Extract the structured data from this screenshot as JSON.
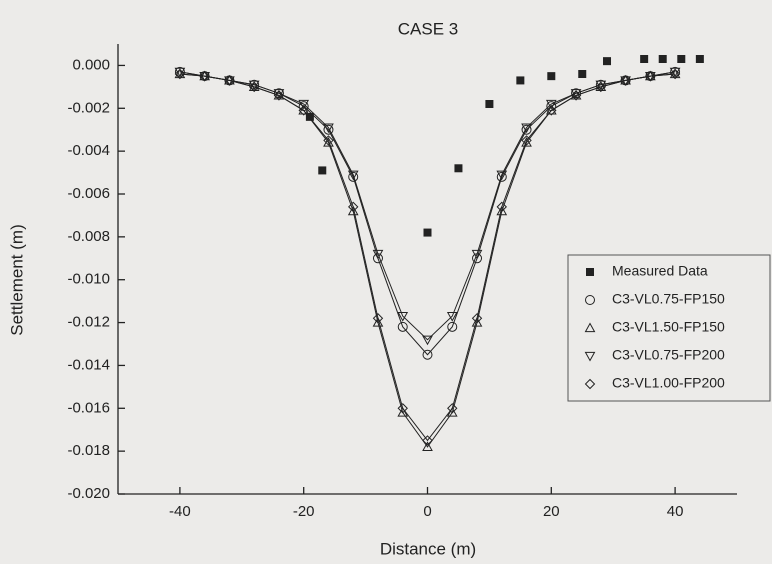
{
  "chart_data": {
    "type": "line",
    "title": "CASE 3",
    "x_label": "Distance (m)",
    "y_label": "Settlement (m)",
    "xlim": [
      -50,
      50
    ],
    "xticks": [
      -40,
      -20,
      0,
      20,
      40
    ],
    "ylim": [
      -0.02,
      0.001
    ],
    "yticks": [
      {
        "value": 0,
        "label": "0.000"
      },
      {
        "value": -0.002,
        "label": "-0.002"
      },
      {
        "value": -0.004,
        "label": "-0.004"
      },
      {
        "value": -0.006,
        "label": "-0.006"
      },
      {
        "value": -0.008,
        "label": "-0.008"
      },
      {
        "value": -0.01,
        "label": "-0.010"
      },
      {
        "value": -0.012,
        "label": "-0.012"
      },
      {
        "value": -0.014,
        "label": "-0.014"
      },
      {
        "value": -0.016,
        "label": "-0.016"
      },
      {
        "value": -0.018,
        "label": "-0.018"
      },
      {
        "value": -0.02,
        "label": "-0.020"
      }
    ],
    "series": [
      {
        "name": "Measured Data",
        "marker": "square",
        "line": false,
        "color": "#222222",
        "x": [
          -19,
          -17,
          0,
          5,
          10,
          15,
          20,
          25,
          29,
          35,
          38,
          41,
          44
        ],
        "values": [
          -0.0024,
          -0.0049,
          -0.0078,
          -0.0048,
          -0.0018,
          -0.0007,
          -0.0005,
          -0.0004,
          0.0002,
          0.0003,
          0.0003,
          0.0003,
          0.0003
        ]
      },
      {
        "name": "C3-VL0.75-FP150",
        "marker": "circle",
        "line": true,
        "color": "#222222",
        "x": [
          -40,
          -36,
          -32,
          -28,
          -24,
          -20,
          -16,
          -12,
          -8,
          -4,
          0,
          4,
          8,
          12,
          16,
          20,
          24,
          28,
          32,
          36,
          40
        ],
        "values": [
          -0.0003,
          -0.0005,
          -0.0007,
          -0.0009,
          -0.0013,
          -0.0019,
          -0.003,
          -0.0052,
          -0.009,
          -0.0122,
          -0.0135,
          -0.0122,
          -0.009,
          -0.0052,
          -0.003,
          -0.0019,
          -0.0013,
          -0.0009,
          -0.0007,
          -0.0005,
          -0.0003
        ]
      },
      {
        "name": "C3-VL1.50-FP150",
        "marker": "triangle-up",
        "line": true,
        "color": "#222222",
        "x": [
          -40,
          -36,
          -32,
          -28,
          -24,
          -20,
          -16,
          -12,
          -8,
          -4,
          0,
          4,
          8,
          12,
          16,
          20,
          24,
          28,
          32,
          36,
          40
        ],
        "values": [
          -0.0004,
          -0.0005,
          -0.0007,
          -0.001,
          -0.0014,
          -0.0021,
          -0.0036,
          -0.0068,
          -0.012,
          -0.0162,
          -0.0178,
          -0.0162,
          -0.012,
          -0.0068,
          -0.0036,
          -0.0021,
          -0.0014,
          -0.001,
          -0.0007,
          -0.0005,
          -0.0004
        ]
      },
      {
        "name": "C3-VL0.75-FP200",
        "marker": "triangle-down",
        "line": true,
        "color": "#222222",
        "x": [
          -40,
          -36,
          -32,
          -28,
          -24,
          -20,
          -16,
          -12,
          -8,
          -4,
          0,
          4,
          8,
          12,
          16,
          20,
          24,
          28,
          32,
          36,
          40
        ],
        "values": [
          -0.0003,
          -0.0005,
          -0.0007,
          -0.0009,
          -0.0013,
          -0.0018,
          -0.0029,
          -0.0051,
          -0.0088,
          -0.0117,
          -0.0128,
          -0.0117,
          -0.0088,
          -0.0051,
          -0.0029,
          -0.0018,
          -0.0013,
          -0.0009,
          -0.0007,
          -0.0005,
          -0.0003
        ]
      },
      {
        "name": "C3-VL1.00-FP200",
        "marker": "diamond",
        "line": true,
        "color": "#222222",
        "x": [
          -40,
          -36,
          -32,
          -28,
          -24,
          -20,
          -16,
          -12,
          -8,
          -4,
          0,
          4,
          8,
          12,
          16,
          20,
          24,
          28,
          32,
          36,
          40
        ],
        "values": [
          -0.0004,
          -0.0005,
          -0.0007,
          -0.001,
          -0.0014,
          -0.0021,
          -0.0035,
          -0.0066,
          -0.0118,
          -0.016,
          -0.0175,
          -0.016,
          -0.0118,
          -0.0066,
          -0.0035,
          -0.0021,
          -0.0014,
          -0.001,
          -0.0007,
          -0.0005,
          -0.0004
        ]
      }
    ]
  }
}
